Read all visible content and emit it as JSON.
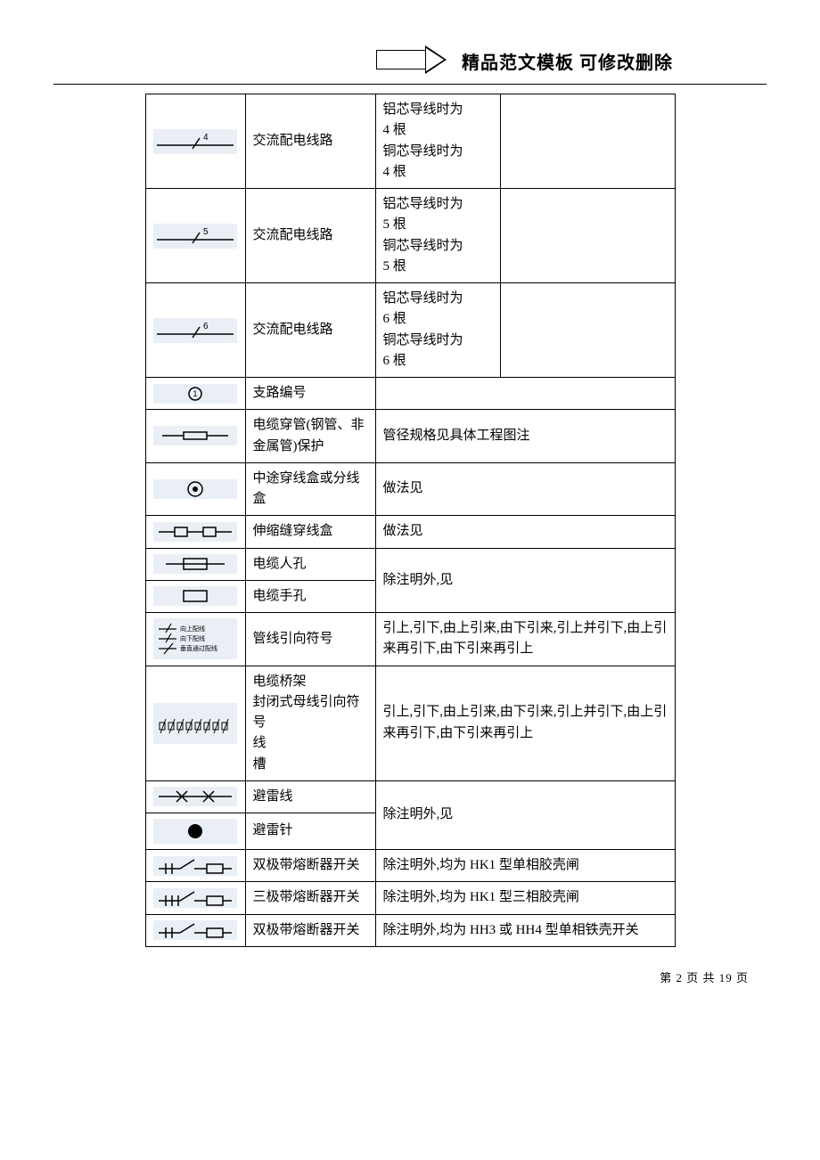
{
  "header": {
    "label": "精品范文模板  可修改删除"
  },
  "footer": {
    "prefix": "第",
    "page": "2",
    "mid": "页 共",
    "total": "19",
    "suffix": "页"
  },
  "colors": {
    "page_bg": "#ffffff",
    "border": "#000000",
    "symbol_bg": "#e9eff5",
    "text": "#000000"
  },
  "table": {
    "rows": [
      {
        "symbol": "line-4",
        "name": "交流配电线路",
        "desc": "铝芯导线时为\n4 根\n铜芯导线时为\n4 根",
        "desc_sub": true,
        "extra_col": true
      },
      {
        "symbol": "line-5",
        "name": "交流配电线路",
        "desc": "铝芯导线时为\n5 根\n铜芯导线时为\n5 根",
        "desc_sub": true,
        "extra_col": true
      },
      {
        "symbol": "line-6",
        "name": "交流配电线路",
        "desc": "铝芯导线时为\n6 根\n铜芯导线时为\n6 根",
        "desc_sub": true,
        "extra_col": true
      },
      {
        "symbol": "branch-no",
        "name": "支路编号",
        "desc": "",
        "desc_span": 2
      },
      {
        "symbol": "conduit",
        "name": "电缆穿管(钢管、非金属管)保护",
        "desc": "管径规格见具体工程图注",
        "desc_span": 2
      },
      {
        "symbol": "junction-box",
        "name": "中途穿线盒或分线盒",
        "desc": "做法见",
        "desc_span": 2
      },
      {
        "symbol": "expansion-box",
        "name": "伸缩缝穿线盒",
        "desc": "做法见",
        "desc_span": 2
      },
      {
        "symbol": "manhole",
        "name": "电缆人孔",
        "merge_next_desc": true,
        "desc": "除注明外,见",
        "desc_span": 2,
        "desc_rowspan": 2
      },
      {
        "symbol": "handhole",
        "name": "电缆手孔",
        "skip_desc": true
      },
      {
        "symbol": "direction",
        "name": "管线引向符号",
        "desc": "引上,引下,由上引来,由下引来,引上并引下,由上引来再引下,由下引来再引上",
        "desc_span": 2
      },
      {
        "symbol": "tray",
        "name": "电缆桥架\n封闭式母线引向符号\n线\n槽",
        "desc": "引上,引下,由上引来,由下引来,引上并引下,由上引来再引下,由下引来再引上",
        "desc_span": 2
      },
      {
        "symbol": "lightning-wire",
        "name": "避雷线",
        "merge_next_desc": true,
        "desc": "除注明外,见",
        "desc_span": 2,
        "desc_rowspan": 2
      },
      {
        "symbol": "lightning-rod",
        "name": "避雷针",
        "skip_desc": true
      },
      {
        "symbol": "switch-2p-a",
        "name": "双极带熔断器开关",
        "desc": "除注明外,均为 HK1 型单相胶壳闸",
        "desc_span": 2
      },
      {
        "symbol": "switch-3p",
        "name": "三极带熔断器开关",
        "desc": "除注明外,均为 HK1 型三相胶壳闸",
        "desc_span": 2
      },
      {
        "symbol": "switch-2p-b",
        "name": "双极带熔断器开关",
        "desc": "除注明外,均为 HH3 或 HH4 型单相铁壳开关",
        "desc_span": 2
      }
    ]
  },
  "symbol_labels": {
    "line-4": "4",
    "line-5": "5",
    "line-6": "6",
    "direction_lines": [
      "向上配线",
      "向下配线",
      "垂直通过配线"
    ]
  }
}
